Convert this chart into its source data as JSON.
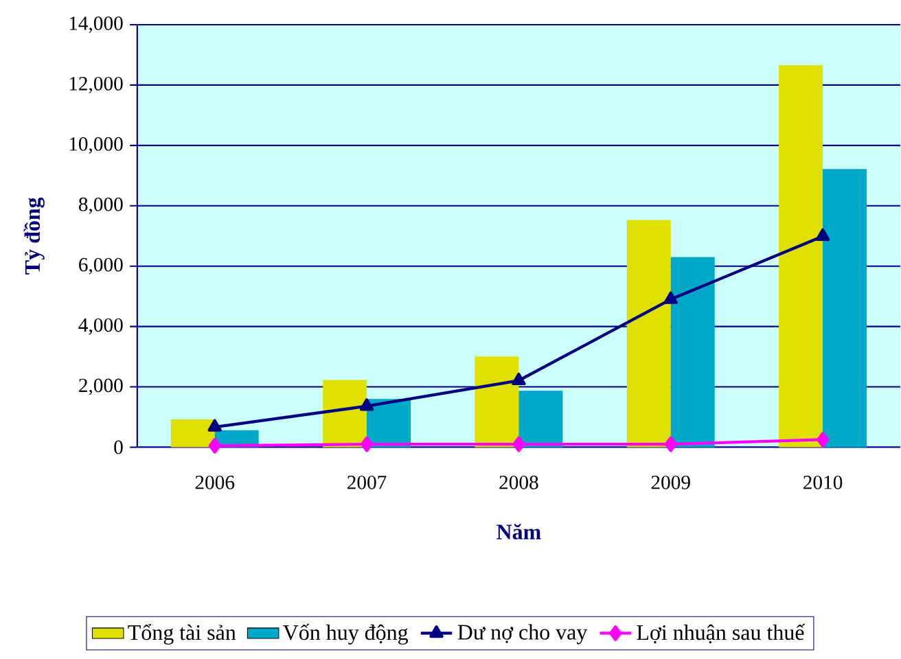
{
  "chart_data": {
    "type": "bar",
    "xlabel": "Năm",
    "ylabel": "Tỷ đồng",
    "categories": [
      "2006",
      "2007",
      "2008",
      "2009",
      "2010"
    ],
    "series": [
      {
        "name": "Tổng tài sản",
        "color": "#e0e000",
        "values": [
          920,
          2230,
          3010,
          7530,
          12660
        ]
      },
      {
        "name": "Vốn huy động",
        "color": "#00a8c8",
        "values": [
          560,
          1600,
          1870,
          6300,
          9220
        ]
      },
      {
        "name": "Dư nợ cho vay",
        "type": "line",
        "color": "#000080",
        "marker": "triangle",
        "values": [
          670,
          1360,
          2210,
          4900,
          6990
        ]
      },
      {
        "name": "Lợi nhuận sau thuế",
        "type": "line",
        "color": "#ff00ff",
        "marker": "diamond",
        "values": [
          50,
          100,
          100,
          100,
          250
        ]
      }
    ],
    "ylim": [
      0,
      14000
    ],
    "yticks": [
      {
        "value": 0,
        "label": "0"
      },
      {
        "value": 2000,
        "label": "2,000"
      },
      {
        "value": 4000,
        "label": "4,000"
      },
      {
        "value": 6000,
        "label": "6,000"
      },
      {
        "value": 8000,
        "label": "8,000"
      },
      {
        "value": 10000,
        "label": "10,000"
      },
      {
        "value": 12000,
        "label": "12,000"
      },
      {
        "value": 14000,
        "label": "14,000"
      }
    ],
    "grid": "y",
    "legend": "bottom"
  }
}
